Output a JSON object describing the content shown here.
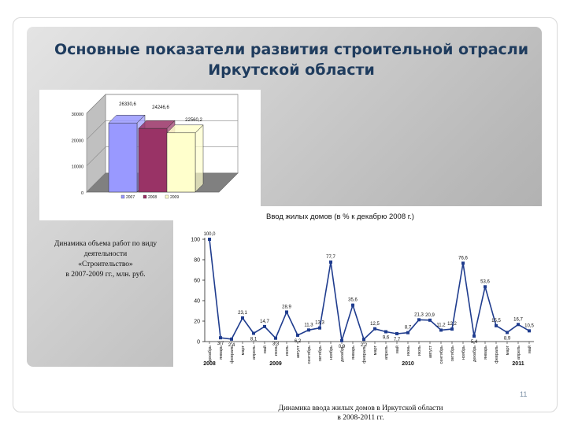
{
  "slide": {
    "title_line1": "Основные показатели развития строительной отрасли",
    "title_line2": "Иркутской области",
    "page_number": "11",
    "caption_left": [
      "Динамика объема работ по виду",
      "деятельности",
      "«Строительство»",
      "в 2007-2009 гг., млн. руб."
    ],
    "caption_bottom": [
      "Динамика ввода жилых домов в Иркутской области",
      "в 2008-2011 гг."
    ]
  },
  "chart_data": [
    {
      "type": "bar",
      "categories": [
        "2007",
        "2008",
        "2009"
      ],
      "values": [
        26330.6,
        24246.6,
        22560.2
      ],
      "value_labels": [
        "26330,6",
        "24246,6",
        "22560,2"
      ],
      "colors": [
        "#9999ff",
        "#993366",
        "#ffffcc"
      ],
      "legend": [
        "2007",
        "2008",
        "2009"
      ],
      "ytick_labels": [
        "0",
        "10000",
        "20000",
        "30000"
      ],
      "ylim": [
        0,
        30000
      ]
    },
    {
      "type": "line",
      "title": "Ввод жилых домов (в % к декабрю 2008 г.)",
      "months": [
        "январь",
        "февраль",
        "март",
        "апрель",
        "май",
        "июнь",
        "июль",
        "август",
        "сентябрь",
        "октябрь",
        "ноябрь",
        "декабрь"
      ],
      "year_labels": [
        "2008",
        "2009",
        "2010",
        "2011"
      ],
      "x": [
        "2008-12",
        "2009-01",
        "2009-02",
        "2009-03",
        "2009-04",
        "2009-05",
        "2009-06",
        "2009-07",
        "2009-08",
        "2009-09",
        "2009-10",
        "2009-11",
        "2009-12",
        "2010-01",
        "2010-02",
        "2010-03",
        "2010-04",
        "2010-05",
        "2010-06",
        "2010-07",
        "2010-08",
        "2010-09",
        "2010-10",
        "2010-11",
        "2010-12",
        "2011-01",
        "2011-02",
        "2011-03",
        "2011-04",
        "2011-05"
      ],
      "values": [
        100.0,
        3.7,
        2.4,
        23.1,
        8.1,
        14.7,
        3.3,
        28.9,
        6.2,
        11.3,
        13.3,
        77.7,
        0.9,
        35.6,
        2.2,
        12.5,
        9.6,
        7.7,
        8.7,
        21.3,
        20.9,
        11.2,
        12.2,
        76.6,
        5.4,
        53.6,
        15.5,
        8.9,
        16.7,
        10.5
      ],
      "value_labels": [
        "100,0",
        "3,7",
        "2,4",
        "23,1",
        "8,1",
        "14,7",
        "3,3",
        "28,9",
        "6,2",
        "11,3",
        "13,3",
        "77,7",
        "0,9",
        "35,6",
        "2,2",
        "12,5",
        "9,6",
        "7,7",
        "8,7",
        "21,3",
        "20,9",
        "11,2",
        "12,2",
        "76,6",
        "5,4",
        "53,6",
        "15,5",
        "8,9",
        "16,7",
        "10,5"
      ],
      "ylim": [
        0,
        100
      ],
      "ytick_labels": [
        "0",
        "20",
        "40",
        "60",
        "80",
        "100"
      ],
      "color": "#1f3c8e"
    }
  ]
}
